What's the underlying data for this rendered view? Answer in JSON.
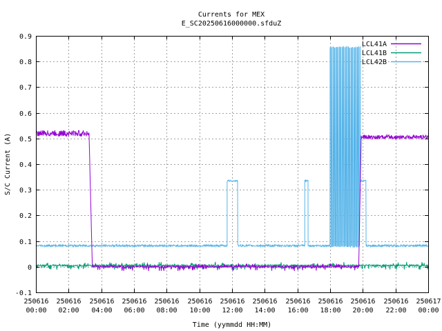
{
  "chart_data": {
    "type": "line",
    "title": "Currents for MEX",
    "subtitle": "E_SC20250616000000.sfduZ",
    "xlabel": "Time (yymmdd HH:MM)",
    "ylabel": "S/C Current (A)",
    "xlim_hours": [
      0,
      24
    ],
    "ylim": [
      -0.1,
      0.9
    ],
    "y_ticks": [
      "-0.1",
      "0",
      "0.1",
      "0.2",
      "0.3",
      "0.4",
      "0.5",
      "0.6",
      "0.7",
      "0.8",
      "0.9"
    ],
    "x_ticks": [
      {
        "date": "250616",
        "time": "00:00"
      },
      {
        "date": "250616",
        "time": "02:00"
      },
      {
        "date": "250616",
        "time": "04:00"
      },
      {
        "date": "250616",
        "time": "06:00"
      },
      {
        "date": "250616",
        "time": "08:00"
      },
      {
        "date": "250616",
        "time": "10:00"
      },
      {
        "date": "250616",
        "time": "12:00"
      },
      {
        "date": "250616",
        "time": "14:00"
      },
      {
        "date": "250616",
        "time": "16:00"
      },
      {
        "date": "250616",
        "time": "18:00"
      },
      {
        "date": "250616",
        "time": "20:00"
      },
      {
        "date": "250616",
        "time": "22:00"
      },
      {
        "date": "250617",
        "time": "00:00"
      }
    ],
    "grid": true,
    "legend_position": "top-right",
    "series": [
      {
        "name": "LCL41A",
        "color": "#9400d3",
        "segments": [
          {
            "start": 0.0,
            "end": 3.25,
            "base": 0.52,
            "noise": 0.012
          },
          {
            "start": 3.25,
            "end": 3.45,
            "ramp_from": 0.52,
            "ramp_to": 0.0
          },
          {
            "start": 3.45,
            "end": 19.75,
            "base": 0.0,
            "noise": 0.003,
            "spikes": true
          },
          {
            "start": 19.75,
            "end": 19.9,
            "ramp_from": 0.0,
            "ramp_to": 0.5
          },
          {
            "start": 19.9,
            "end": 24.0,
            "base": 0.505,
            "noise": 0.008
          }
        ]
      },
      {
        "name": "LCL41B",
        "color": "#009e73",
        "segments": [
          {
            "start": 0.0,
            "end": 24.0,
            "base": 0.005,
            "noise": 0.003,
            "spikes": true
          }
        ]
      },
      {
        "name": "LCL42B",
        "color": "#56b4e9",
        "segments": [
          {
            "start": 0.0,
            "end": 11.7,
            "base": 0.082,
            "noise": 0.004
          },
          {
            "start": 11.7,
            "end": 12.35,
            "base": 0.335,
            "noise": 0.003
          },
          {
            "start": 12.35,
            "end": 16.45,
            "base": 0.082,
            "noise": 0.004
          },
          {
            "start": 16.45,
            "end": 16.65,
            "base": 0.335,
            "noise": 0.003
          },
          {
            "start": 16.65,
            "end": 18.0,
            "base": 0.082,
            "noise": 0.004
          },
          {
            "start": 18.0,
            "end": 19.85,
            "toggle_low": 0.08,
            "toggle_high": 0.855
          },
          {
            "start": 19.85,
            "end": 20.2,
            "base": 0.335,
            "noise": 0.003
          },
          {
            "start": 20.2,
            "end": 24.0,
            "base": 0.082,
            "noise": 0.004
          }
        ]
      }
    ]
  }
}
